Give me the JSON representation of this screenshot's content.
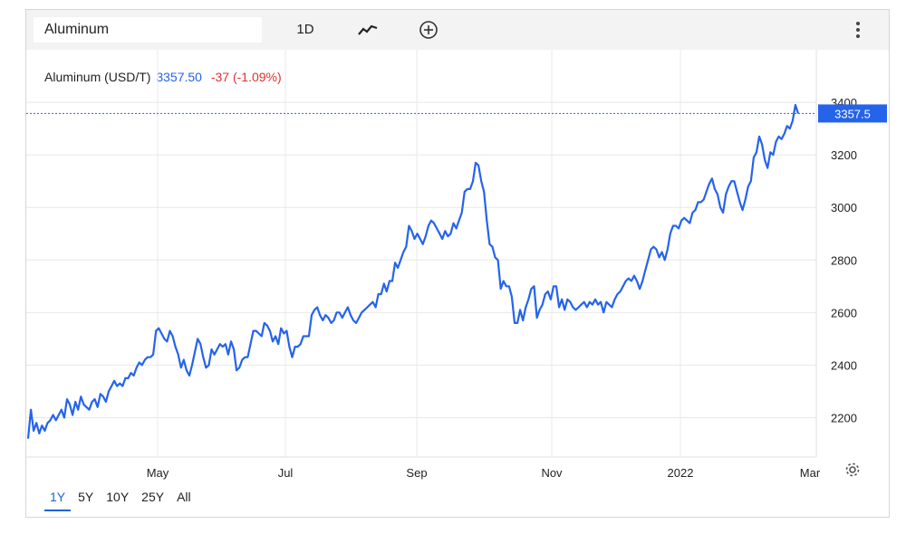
{
  "toolbar": {
    "symbol_value": "Aluminum",
    "interval_label": "1D",
    "chart_type_icon": "line-chart-icon",
    "add_icon": "plus-circle-icon",
    "more_icon": "more-vertical-icon"
  },
  "header": {
    "name": "Aluminum (USD/T)",
    "price": "3357.50",
    "change": "-37 (-1.09%)"
  },
  "ranges": [
    {
      "label": "1Y",
      "active": true
    },
    {
      "label": "5Y",
      "active": false
    },
    {
      "label": "10Y",
      "active": false
    },
    {
      "label": "25Y",
      "active": false
    },
    {
      "label": "All",
      "active": false
    }
  ],
  "settings_icon": "gear-icon",
  "colors": {
    "line": "#2563eb",
    "price_text": "#2563eb",
    "change_text": "#e03131",
    "price_tag_bg": "#2563eb",
    "grid": "#e8e8e8"
  },
  "chart_data": {
    "type": "line",
    "title": "Aluminum (USD/T)",
    "xlabel": "",
    "ylabel": "",
    "x_ticks": [
      "May",
      "Jul",
      "Sep",
      "Nov",
      "2022",
      "Mar"
    ],
    "y_ticks": [
      2200,
      2400,
      2600,
      2800,
      3000,
      3200,
      3400
    ],
    "ylim": [
      2050,
      3600
    ],
    "grid": true,
    "last_value": "3357.5",
    "series": [
      {
        "values": [
          2120,
          2230,
          2150,
          2180,
          2140,
          2170,
          2150,
          2180,
          2190,
          2210,
          2190,
          2210,
          2230,
          2200,
          2270,
          2250,
          2210,
          2260,
          2230,
          2280,
          2250,
          2240,
          2230,
          2260,
          2270,
          2240,
          2290,
          2280,
          2260,
          2300,
          2320,
          2340,
          2320,
          2330,
          2320,
          2350,
          2350,
          2370,
          2360,
          2390,
          2410,
          2400,
          2420,
          2430,
          2430,
          2440,
          2530,
          2540,
          2520,
          2500,
          2490,
          2530,
          2510,
          2470,
          2440,
          2390,
          2420,
          2380,
          2360,
          2400,
          2450,
          2500,
          2480,
          2430,
          2390,
          2400,
          2460,
          2440,
          2460,
          2480,
          2470,
          2480,
          2440,
          2490,
          2460,
          2380,
          2390,
          2420,
          2430,
          2430,
          2480,
          2530,
          2530,
          2520,
          2510,
          2560,
          2550,
          2530,
          2490,
          2510,
          2480,
          2540,
          2520,
          2530,
          2470,
          2430,
          2470,
          2470,
          2480,
          2510,
          2510,
          2510,
          2590,
          2610,
          2620,
          2590,
          2570,
          2590,
          2580,
          2560,
          2570,
          2600,
          2600,
          2580,
          2600,
          2620,
          2590,
          2570,
          2560,
          2580,
          2600,
          2610,
          2620,
          2630,
          2640,
          2620,
          2670,
          2670,
          2710,
          2680,
          2720,
          2720,
          2790,
          2770,
          2800,
          2830,
          2850,
          2930,
          2910,
          2880,
          2900,
          2880,
          2860,
          2890,
          2930,
          2950,
          2940,
          2920,
          2900,
          2880,
          2910,
          2890,
          2900,
          2940,
          2920,
          2950,
          2980,
          3060,
          3070,
          3070,
          3100,
          3170,
          3160,
          3100,
          3060,
          2950,
          2860,
          2850,
          2810,
          2800,
          2690,
          2720,
          2700,
          2700,
          2660,
          2560,
          2560,
          2610,
          2570,
          2620,
          2650,
          2690,
          2700,
          2580,
          2610,
          2630,
          2670,
          2680,
          2650,
          2700,
          2700,
          2620,
          2650,
          2610,
          2650,
          2640,
          2620,
          2610,
          2620,
          2630,
          2640,
          2620,
          2640,
          2630,
          2650,
          2630,
          2640,
          2600,
          2640,
          2630,
          2620,
          2650,
          2670,
          2680,
          2700,
          2720,
          2730,
          2720,
          2740,
          2720,
          2690,
          2720,
          2760,
          2800,
          2840,
          2850,
          2840,
          2810,
          2830,
          2800,
          2840,
          2900,
          2930,
          2930,
          2920,
          2950,
          2960,
          2950,
          2940,
          2980,
          2990,
          3020,
          3020,
          3030,
          3060,
          3090,
          3110,
          3070,
          3050,
          3000,
          2980,
          3050,
          3080,
          3100,
          3100,
          3060,
          3020,
          2990,
          3030,
          3080,
          3100,
          3190,
          3210,
          3270,
          3240,
          3180,
          3150,
          3210,
          3200,
          3250,
          3270,
          3260,
          3280,
          3310,
          3300,
          3330,
          3390,
          3357.5
        ]
      }
    ]
  }
}
